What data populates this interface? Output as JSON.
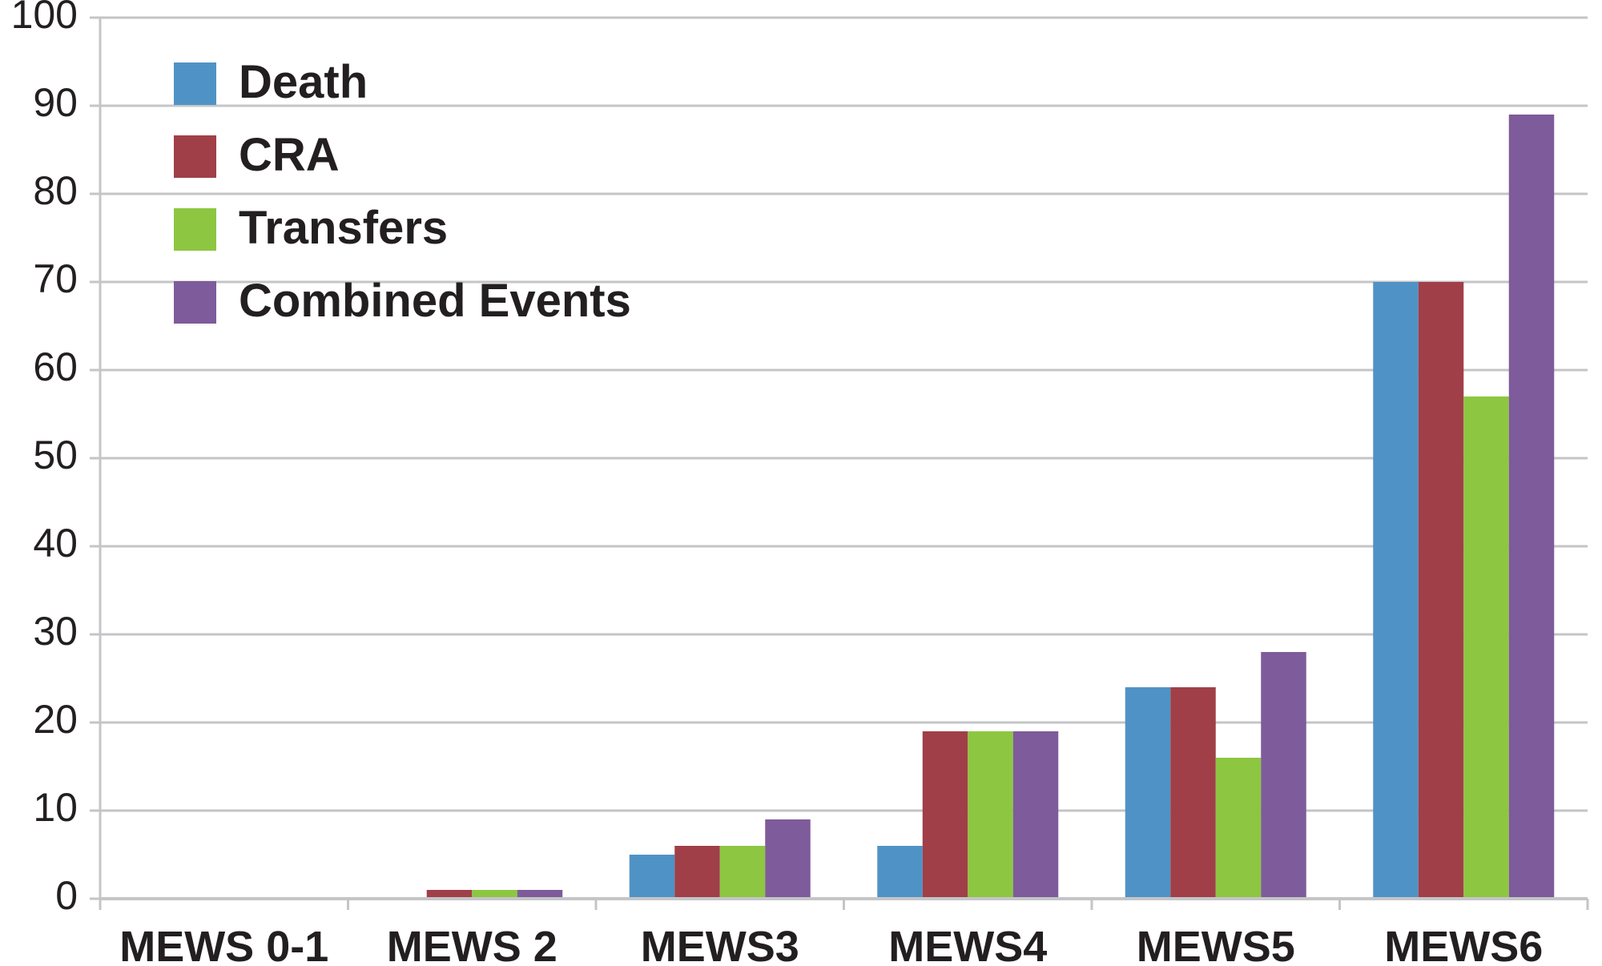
{
  "chart_data": {
    "type": "bar",
    "categories": [
      "MEWS 0-1",
      "MEWS 2",
      "MEWS3",
      "MEWS4",
      "MEWS5",
      "MEWS6"
    ],
    "series": [
      {
        "name": "Death",
        "color": "#4f93c6",
        "values": [
          0,
          0,
          5,
          6,
          24,
          70
        ]
      },
      {
        "name": "CRA",
        "color": "#a03f48",
        "values": [
          0,
          1,
          6,
          19,
          24,
          70
        ]
      },
      {
        "name": "Transfers",
        "color": "#8dc641",
        "values": [
          0,
          1,
          6,
          19,
          16,
          57
        ]
      },
      {
        "name": "Combined Events",
        "color": "#7e5b9a",
        "values": [
          0,
          1,
          9,
          19,
          28,
          89
        ]
      }
    ],
    "yticks": [
      "0",
      "10",
      "20",
      "30",
      "40",
      "50",
      "60",
      "70",
      "80",
      "90",
      "100"
    ],
    "ylim": [
      0,
      100
    ],
    "grid": true,
    "legend_position": "top-left",
    "title": "",
    "xlabel": "",
    "ylabel": ""
  }
}
